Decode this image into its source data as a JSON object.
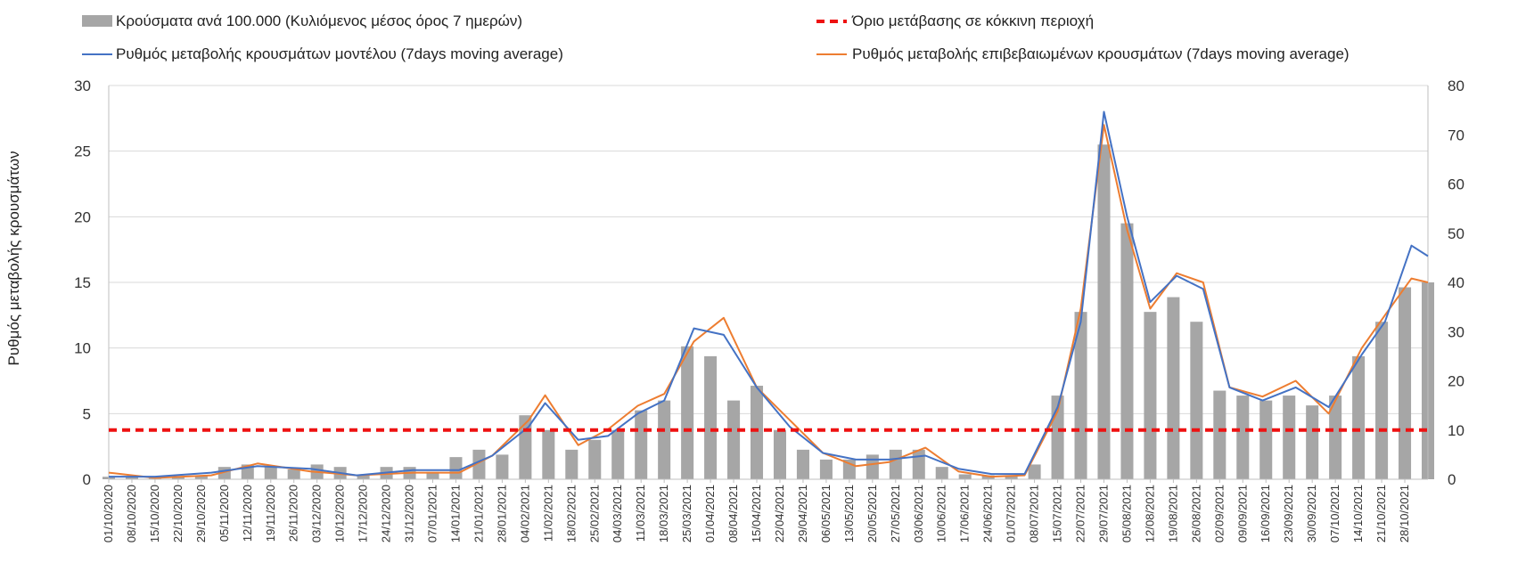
{
  "chart_data": {
    "type": "bar",
    "ylabel_left": "Ρυθμός μεταβολής κρουσμάτων",
    "ylim_left": [
      0,
      30
    ],
    "yticks_left": [
      "0",
      "5",
      "10",
      "15",
      "20",
      "25",
      "30"
    ],
    "ylim_right": [
      0,
      80
    ],
    "yticks_right": [
      "0",
      "10",
      "20",
      "30",
      "40",
      "50",
      "60",
      "70",
      "80"
    ],
    "legend": {
      "bars": "Κρούσματα ανά 100.000 (Κυλιόμενος μέσος όρος 7 ημερών)",
      "threshold": "Όριο μετάβασης σε κόκκινη περιοχή",
      "model": "Ρυθμός μεταβολής κρουσμάτων μοντέλου (7days moving average)",
      "confirmed": "Ρυθμός μεταβολής επιβεβαιωμένων κρουσμάτων (7days moving average)"
    },
    "colors": {
      "bars": "#a6a6a6",
      "threshold": "#ee1111",
      "model": "#4472c4",
      "confirmed": "#ed7d31",
      "grid": "#d9d9d9"
    },
    "threshold_value": 10,
    "date_start": "2020-10-01",
    "date_end": "2021-11-04",
    "x_tick_labels": [
      "01/10/2020",
      "08/10/2020",
      "15/10/2020",
      "22/10/2020",
      "29/10/2020",
      "05/11/2020",
      "12/11/2020",
      "19/11/2020",
      "26/11/2020",
      "03/12/2020",
      "10/12/2020",
      "17/12/2020",
      "24/12/2020",
      "31/12/2020",
      "07/01/2021",
      "14/01/2021",
      "21/01/2021",
      "28/01/2021",
      "04/02/2021",
      "11/02/2021",
      "18/02/2021",
      "25/02/2021",
      "04/03/2021",
      "11/03/2021",
      "18/03/2021",
      "25/03/2021",
      "01/04/2021",
      "08/04/2021",
      "15/04/2021",
      "22/04/2021",
      "29/04/2021",
      "06/05/2021",
      "13/05/2021",
      "20/05/2021",
      "27/05/2021",
      "03/06/2021",
      "10/06/2021",
      "17/06/2021",
      "24/06/2021",
      "01/07/2021",
      "08/07/2021",
      "15/07/2021",
      "22/07/2021",
      "29/07/2021",
      "05/08/2021",
      "12/08/2021",
      "19/08/2021",
      "26/08/2021",
      "02/09/2021",
      "09/09/2021",
      "16/09/2021",
      "23/09/2021",
      "30/09/2021",
      "07/10/2021",
      "14/10/2021",
      "21/10/2021",
      "28/10/2021"
    ],
    "series": [
      {
        "name": "Κρούσματα ανά 100.000 (Κυλιόμενος μέσος όρος 7 ημερών)",
        "axis": "right",
        "type": "bar",
        "x": [
          "2020-10-01",
          "2020-10-08",
          "2020-10-15",
          "2020-10-22",
          "2020-10-29",
          "2020-11-05",
          "2020-11-12",
          "2020-11-19",
          "2020-11-26",
          "2020-12-03",
          "2020-12-10",
          "2020-12-17",
          "2020-12-24",
          "2020-12-31",
          "2021-01-07",
          "2021-01-14",
          "2021-01-21",
          "2021-01-28",
          "2021-02-04",
          "2021-02-11",
          "2021-02-18",
          "2021-02-25",
          "2021-03-04",
          "2021-03-11",
          "2021-03-18",
          "2021-03-25",
          "2021-04-01",
          "2021-04-08",
          "2021-04-15",
          "2021-04-22",
          "2021-04-29",
          "2021-05-06",
          "2021-05-13",
          "2021-05-20",
          "2021-05-27",
          "2021-06-03",
          "2021-06-10",
          "2021-06-17",
          "2021-06-24",
          "2021-07-01",
          "2021-07-08",
          "2021-07-15",
          "2021-07-22",
          "2021-07-29",
          "2021-08-05",
          "2021-08-12",
          "2021-08-19",
          "2021-08-26",
          "2021-09-02",
          "2021-09-09",
          "2021-09-16",
          "2021-09-23",
          "2021-09-30",
          "2021-10-07",
          "2021-10-14",
          "2021-10-21",
          "2021-10-28",
          "2021-11-04"
        ],
        "values": [
          0.5,
          0.6,
          0.5,
          0.5,
          0.8,
          2.5,
          3,
          2.5,
          2,
          3,
          2.5,
          1,
          2.5,
          2.5,
          1.5,
          4.5,
          6,
          5,
          13,
          10,
          6,
          8,
          10,
          14,
          16,
          27,
          25,
          16,
          19,
          10,
          6,
          4,
          4,
          5,
          6,
          6,
          2.5,
          1,
          0.8,
          0.6,
          3,
          17,
          34,
          68,
          52,
          34,
          37,
          32,
          18,
          17,
          16,
          17,
          15,
          17,
          25,
          32,
          39,
          40
        ]
      },
      {
        "name": "Ρυθμός μεταβολής κρουσμάτων μοντέλου (7days moving average)",
        "axis": "left",
        "type": "line",
        "x": [
          "2020-10-01",
          "2020-10-15",
          "2020-11-01",
          "2020-11-15",
          "2020-12-01",
          "2020-12-15",
          "2021-01-01",
          "2021-01-15",
          "2021-01-25",
          "2021-02-05",
          "2021-02-10",
          "2021-02-20",
          "2021-03-01",
          "2021-03-10",
          "2021-03-18",
          "2021-03-27",
          "2021-04-05",
          "2021-04-15",
          "2021-04-25",
          "2021-05-05",
          "2021-05-15",
          "2021-05-25",
          "2021-06-05",
          "2021-06-15",
          "2021-06-25",
          "2021-07-05",
          "2021-07-15",
          "2021-07-22",
          "2021-07-29",
          "2021-08-05",
          "2021-08-12",
          "2021-08-20",
          "2021-08-28",
          "2021-09-05",
          "2021-09-15",
          "2021-09-25",
          "2021-10-05",
          "2021-10-15",
          "2021-10-22",
          "2021-10-30",
          "2021-11-04"
        ],
        "values": [
          0.2,
          0.2,
          0.5,
          1.0,
          0.8,
          0.3,
          0.7,
          0.7,
          1.8,
          4.0,
          5.8,
          3.0,
          3.3,
          5.0,
          6.0,
          11.5,
          11.0,
          7.0,
          4.0,
          2.0,
          1.5,
          1.5,
          1.8,
          0.8,
          0.4,
          0.4,
          5.5,
          12.0,
          28.0,
          20.0,
          13.5,
          15.5,
          14.5,
          7.0,
          6.0,
          7.0,
          5.5,
          9.5,
          12.0,
          17.8,
          17.0
        ]
      },
      {
        "name": "Ρυθμός μεταβολής επιβεβαιωμένων κρουσμάτων (7days moving average)",
        "axis": "left",
        "type": "line",
        "x": [
          "2020-10-01",
          "2020-10-15",
          "2020-11-01",
          "2020-11-15",
          "2020-12-01",
          "2020-12-15",
          "2021-01-01",
          "2021-01-15",
          "2021-01-25",
          "2021-02-05",
          "2021-02-10",
          "2021-02-20",
          "2021-03-01",
          "2021-03-10",
          "2021-03-18",
          "2021-03-27",
          "2021-04-05",
          "2021-04-15",
          "2021-04-25",
          "2021-05-05",
          "2021-05-15",
          "2021-05-25",
          "2021-06-05",
          "2021-06-15",
          "2021-06-25",
          "2021-07-05",
          "2021-07-15",
          "2021-07-22",
          "2021-07-29",
          "2021-08-05",
          "2021-08-12",
          "2021-08-20",
          "2021-08-28",
          "2021-09-05",
          "2021-09-15",
          "2021-09-25",
          "2021-10-05",
          "2021-10-15",
          "2021-10-22",
          "2021-10-30",
          "2021-11-04"
        ],
        "values": [
          0.5,
          0.1,
          0.3,
          1.2,
          0.6,
          0.3,
          0.5,
          0.5,
          1.8,
          4.5,
          6.4,
          2.6,
          3.8,
          5.6,
          6.5,
          10.5,
          12.3,
          7.0,
          4.5,
          2.0,
          1.0,
          1.3,
          2.4,
          0.6,
          0.2,
          0.3,
          5.2,
          13.0,
          27.0,
          19.0,
          13.0,
          15.7,
          15.0,
          7.0,
          6.3,
          7.5,
          5.0,
          10.0,
          12.5,
          15.3,
          15.0
        ]
      },
      {
        "name": "Όριο μετάβασης σε κόκκινη περιοχή",
        "axis": "right",
        "type": "line",
        "x": [
          "2020-10-01",
          "2021-11-04"
        ],
        "values": [
          10,
          10
        ]
      }
    ]
  }
}
